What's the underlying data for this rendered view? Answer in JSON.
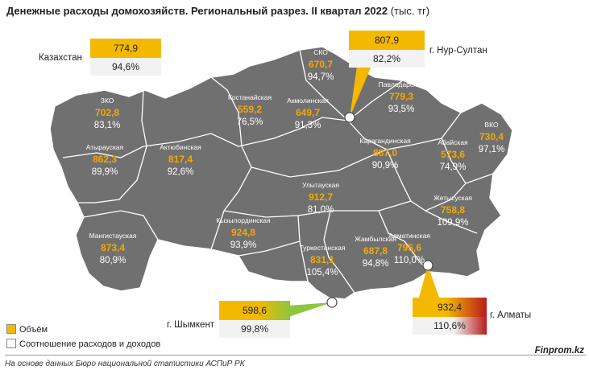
{
  "title": "Денежные расходы домохозяйств. Региональный разрез. II квартал 2022",
  "title_unit": "(тыс. тг)",
  "regions": [
    {
      "name": "ЗКО",
      "value": "702,8",
      "pct": "83,1%"
    },
    {
      "name": "Атырауская",
      "value": "862,3",
      "pct": "89,9%"
    },
    {
      "name": "Мангистауская",
      "value": "873,4",
      "pct": "80,9%"
    },
    {
      "name": "Актюбинская",
      "value": "817,4",
      "pct": "92,6%"
    },
    {
      "name": "Костанайская",
      "value": "559,2",
      "pct": "76,5%"
    },
    {
      "name": "СКО",
      "value": "670,7",
      "pct": "94,7%"
    },
    {
      "name": "Акмолинская",
      "value": "649,7",
      "pct": "91,3%"
    },
    {
      "name": "Павлодарская",
      "value": "779,3",
      "pct": "93,5%"
    },
    {
      "name": "ВКО",
      "value": "730,4",
      "pct": "97,1%"
    },
    {
      "name": "Карагандинская",
      "value": "887,0",
      "pct": "90,9%"
    },
    {
      "name": "Абайская",
      "value": "573,6",
      "pct": "74,9%"
    },
    {
      "name": "Улытауская",
      "value": "912,7",
      "pct": "81,0%"
    },
    {
      "name": "Кызылординская",
      "value": "924,8",
      "pct": "93,9%"
    },
    {
      "name": "Жетысуская",
      "value": "758,8",
      "pct": "109,9%"
    },
    {
      "name": "Алматинская",
      "value": "795,6",
      "pct": "110,0%"
    },
    {
      "name": "Жамбылская",
      "value": "687,8",
      "pct": "94,8%"
    },
    {
      "name": "Туркестанская",
      "value": "831,1",
      "pct": "105,4%"
    }
  ],
  "callouts": {
    "kazakhstan": {
      "label": "Казахстан",
      "value": "774,9",
      "pct": "94,6%"
    },
    "nursultan": {
      "label": "г. Нур-Султан",
      "value": "807,9",
      "pct": "82,2%"
    },
    "shymkent": {
      "label": "г. Шымкент",
      "value": "598,6",
      "pct": "99,8%"
    },
    "almaty": {
      "label": "г. Алматы",
      "value": "932,4",
      "pct": "110,6%"
    }
  },
  "legend": {
    "volume": "Объём",
    "ratio": "Соотношение расходов и доходов"
  },
  "source": "На основе данных Бюро национальной статистики АСПиР РК",
  "brand": "Finprom.kz",
  "colors": {
    "map_fill": "#707070",
    "border": "#ffffff",
    "value": "#f5a800",
    "green": "#8dc63f",
    "red": "#c0392b"
  }
}
